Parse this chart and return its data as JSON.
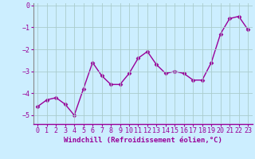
{
  "x": [
    0,
    1,
    2,
    3,
    4,
    5,
    6,
    7,
    8,
    9,
    10,
    11,
    12,
    13,
    14,
    15,
    16,
    17,
    18,
    19,
    20,
    21,
    22,
    23
  ],
  "y": [
    -4.6,
    -4.3,
    -4.2,
    -4.5,
    -5.0,
    -3.8,
    -2.6,
    -3.2,
    -3.6,
    -3.6,
    -3.1,
    -2.4,
    -2.1,
    -2.7,
    -3.1,
    -3.0,
    -3.1,
    -3.4,
    -3.4,
    -2.6,
    -1.3,
    -0.6,
    -0.5,
    -1.1
  ],
  "line_color": "#990099",
  "marker": "D",
  "markersize": 2.5,
  "linewidth": 1.0,
  "bg_color": "#cceeff",
  "grid_color": "#aacccc",
  "xlabel": "Windchill (Refroidissement éolien,°C)",
  "xlabel_fontsize": 6.5,
  "ylabel_ticks": [
    0,
    -1,
    -2,
    -3,
    -4,
    -5
  ],
  "xtick_labels": [
    "0",
    "1",
    "2",
    "3",
    "4",
    "5",
    "6",
    "7",
    "8",
    "9",
    "10",
    "11",
    "12",
    "13",
    "14",
    "15",
    "16",
    "17",
    "18",
    "19",
    "20",
    "21",
    "22",
    "23"
  ],
  "ylim": [
    -5.4,
    0.1
  ],
  "xlim": [
    -0.5,
    23.5
  ],
  "tick_fontsize": 6.0,
  "spine_color": "#888888"
}
